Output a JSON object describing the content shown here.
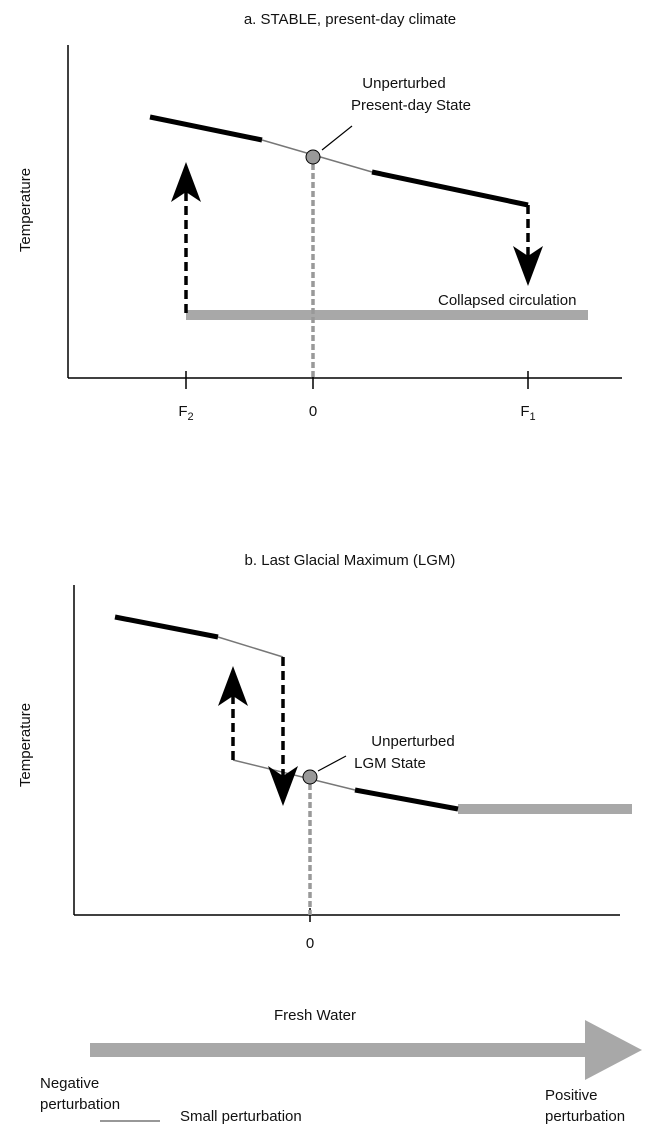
{
  "panel_a": {
    "title": "a.  STABLE, present-day climate",
    "y_label": "Temperature",
    "annotation": [
      "Unperturbed",
      "Present-day State"
    ],
    "collapsed_label": "Collapsed circulation",
    "x_labels": [
      {
        "base": "F",
        "sub": "2"
      },
      {
        "base": "0"
      },
      {
        "base": "F",
        "sub": "1"
      }
    ]
  },
  "panel_b": {
    "title": "b.  Last Glacial Maximum (LGM)",
    "y_label": "Temperature",
    "annotation": [
      "Unperturbed",
      "LGM State"
    ],
    "x_labels": [
      {
        "base": "0"
      }
    ]
  },
  "arrow_label": "Fresh Water",
  "negative_label": [
    "Negative",
    "perturbation"
  ],
  "positive_label": [
    "Positive",
    "perturbation"
  ],
  "legend": [
    "Small perturbation"
  ]
}
